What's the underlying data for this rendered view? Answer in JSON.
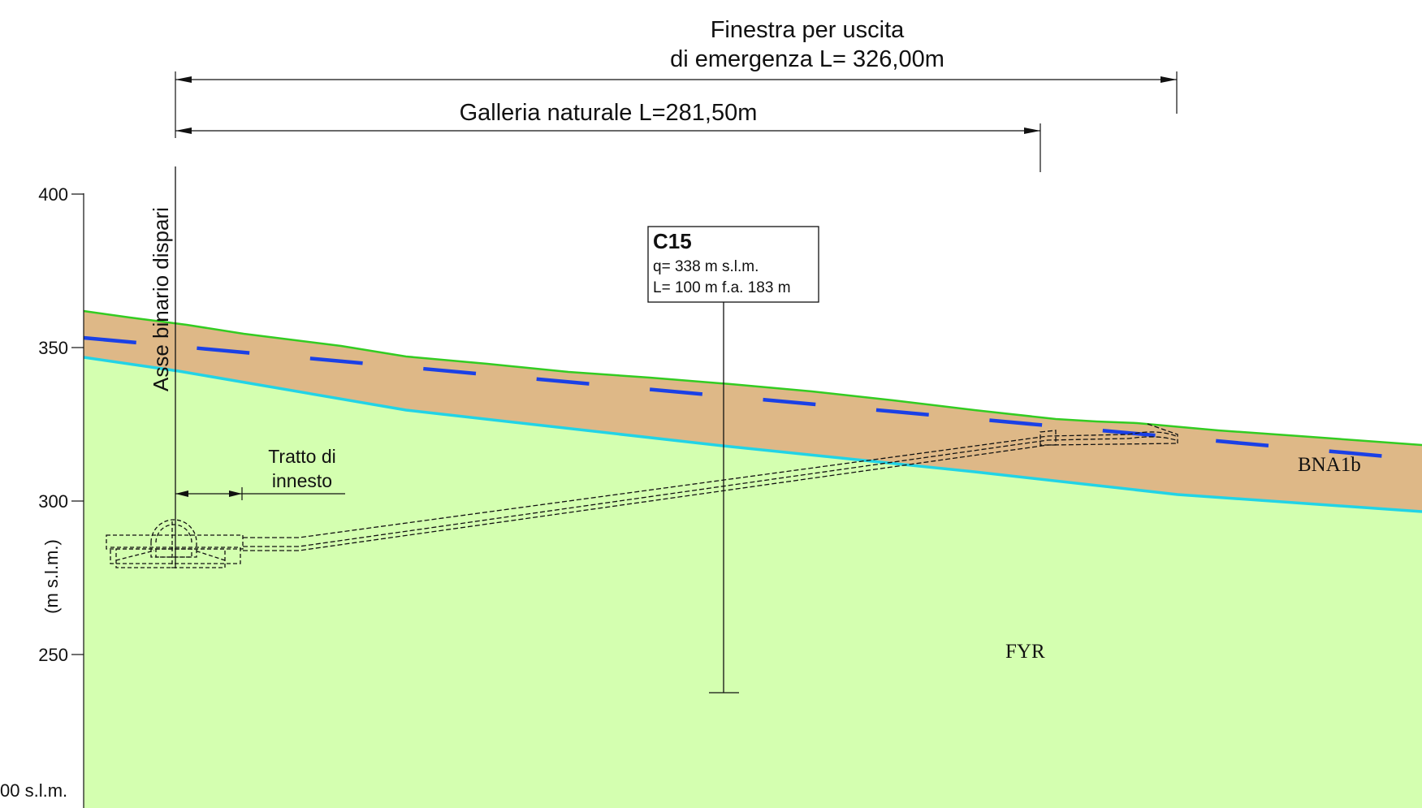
{
  "dimensions": {
    "window_title_line1": "Finestra per uscita",
    "window_title_line2": "di emergenza L= 326,00m",
    "tunnel_label": "Galleria naturale L=281,50m"
  },
  "axis": {
    "title": "(m s.l.m.)",
    "ticks": [
      "400",
      "350",
      "300",
      "250"
    ],
    "bottom_label": "00 s.l.m."
  },
  "track_axis_label": "Asse binario dispari",
  "connection_label": {
    "line1": "Tratto di",
    "line2": "innesto"
  },
  "borehole": {
    "name": "C15",
    "elevation": "q= 338 m s.l.m.",
    "length": "L= 100 m f.a. 183 m"
  },
  "geology": {
    "upper_unit": "BNA1b",
    "lower_unit": "FYR"
  },
  "colors": {
    "ground_surface": "#33cc22",
    "cover_layer": "#deb887",
    "bedrock": "#d4ffb0",
    "layer_boundary": "#22d3e6",
    "water_table": "#1a40e6"
  }
}
